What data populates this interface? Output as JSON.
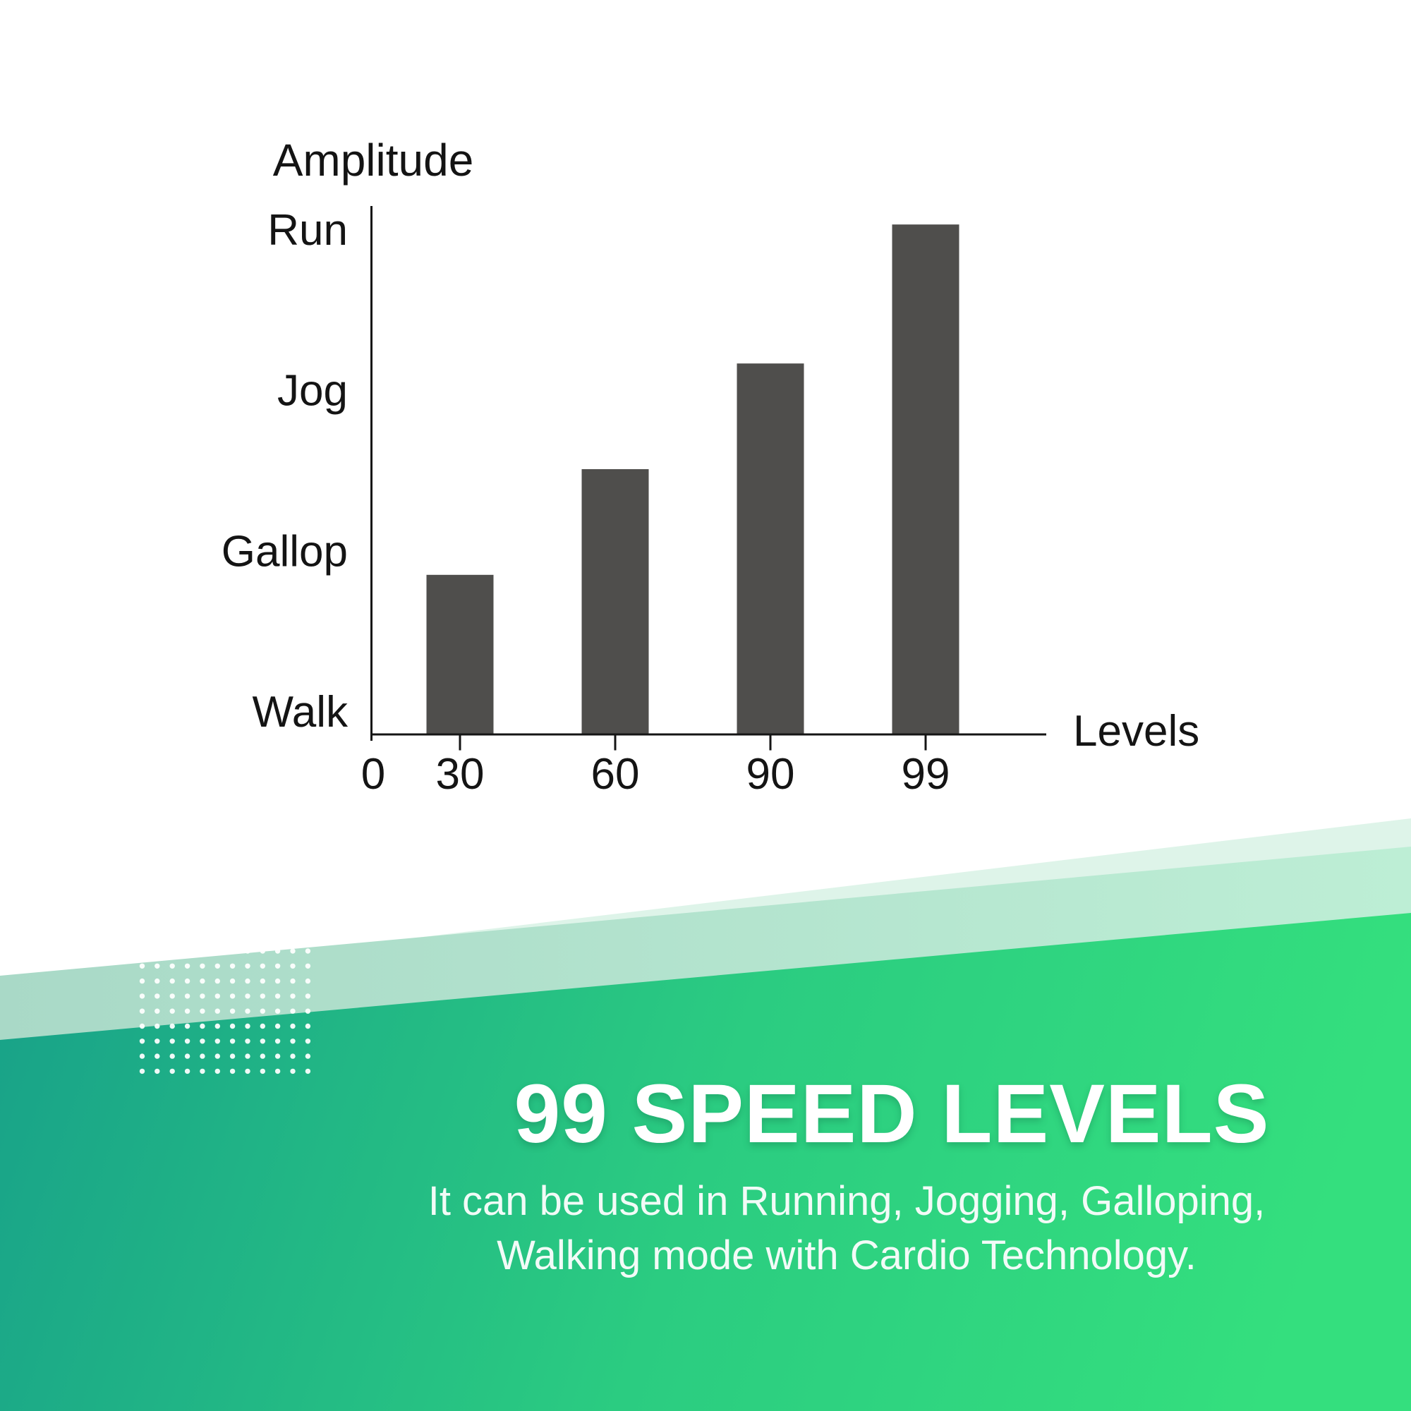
{
  "chart_data": {
    "type": "bar",
    "title": "Amplitude",
    "xlabel": "Levels",
    "ylabel": "Amplitude",
    "categories": [
      "30",
      "60",
      "90",
      "99"
    ],
    "values_percent_of_axis": [
      30.2,
      50.2,
      70.2,
      96.5
    ],
    "x_zero_label": "0",
    "x_tick_labels": [
      "0",
      "30",
      "60",
      "90",
      "99"
    ],
    "y_tick_labels": [
      {
        "label": "Walk",
        "position_percent": 4.4
      },
      {
        "label": "Gallop",
        "position_percent": 34.8
      },
      {
        "label": "Jog",
        "position_percent": 65.2
      },
      {
        "label": "Run",
        "position_percent": 95.6
      }
    ],
    "ylim_percent": [
      0,
      100
    ],
    "grid": false,
    "legend": false,
    "bar_color": "#4f4e4c"
  },
  "banner": {
    "heading": "99 SPEED LEVELS",
    "subtext_line1": "It can be used in Running, Jogging, Galloping,",
    "subtext_line2": "Walking mode with Cardio Technology."
  },
  "colors": {
    "background": "#ffffff",
    "axis": "#151515",
    "chart_text": "#141414",
    "bar": "#4f4e4c",
    "band_faint": "rgba(186,233,209,0.48)",
    "band_light_left": "#a9d9c7",
    "band_light_right": "#bdeed5",
    "band_dark_left": "#18a189",
    "band_dark_mid": "#2bcc81",
    "band_dark_right": "#34df7e",
    "dots": "#ffffff",
    "heading_text": "#ffffff",
    "subtext_text": "#f2fbf7"
  }
}
